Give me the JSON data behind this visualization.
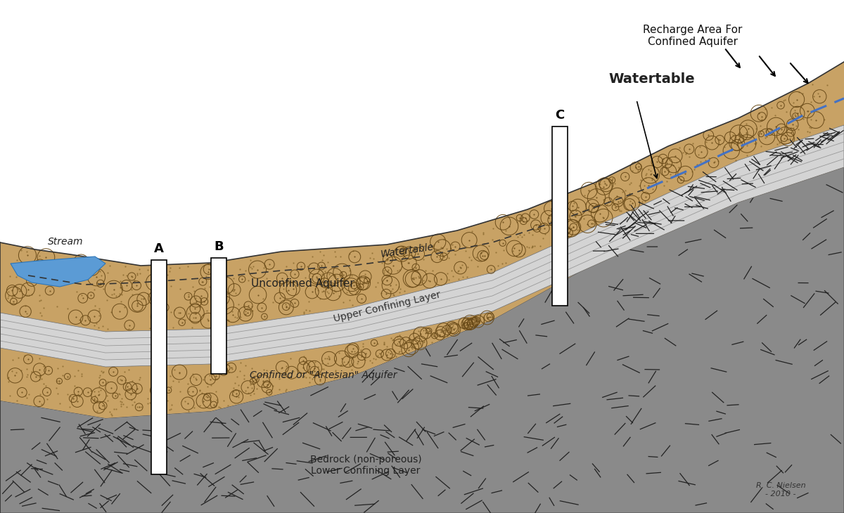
{
  "fig_width": 12.0,
  "fig_height": 7.3,
  "bg_color": "#ffffff",
  "sandy_brown": "#C8A265",
  "bedrock_gray": "#8A8A8A",
  "title_recharge": "Recharge Area For\nConfined Aquifer",
  "label_watertable_top": "Watertable",
  "label_watertable_mid": "Watertable",
  "label_unconfined": "Unconfined Aquifer",
  "label_upper_confining": "Upper Confining Layer",
  "label_confined": "Confined or \"Artesian\" Aquifer",
  "label_bedrock": "Bedrock (non-poreous)\nLower Confining Layer",
  "label_stream": "Stream",
  "label_A": "A",
  "label_B": "B",
  "label_C": "C",
  "signature": "R. C. Nielsen\n- 2010 -"
}
